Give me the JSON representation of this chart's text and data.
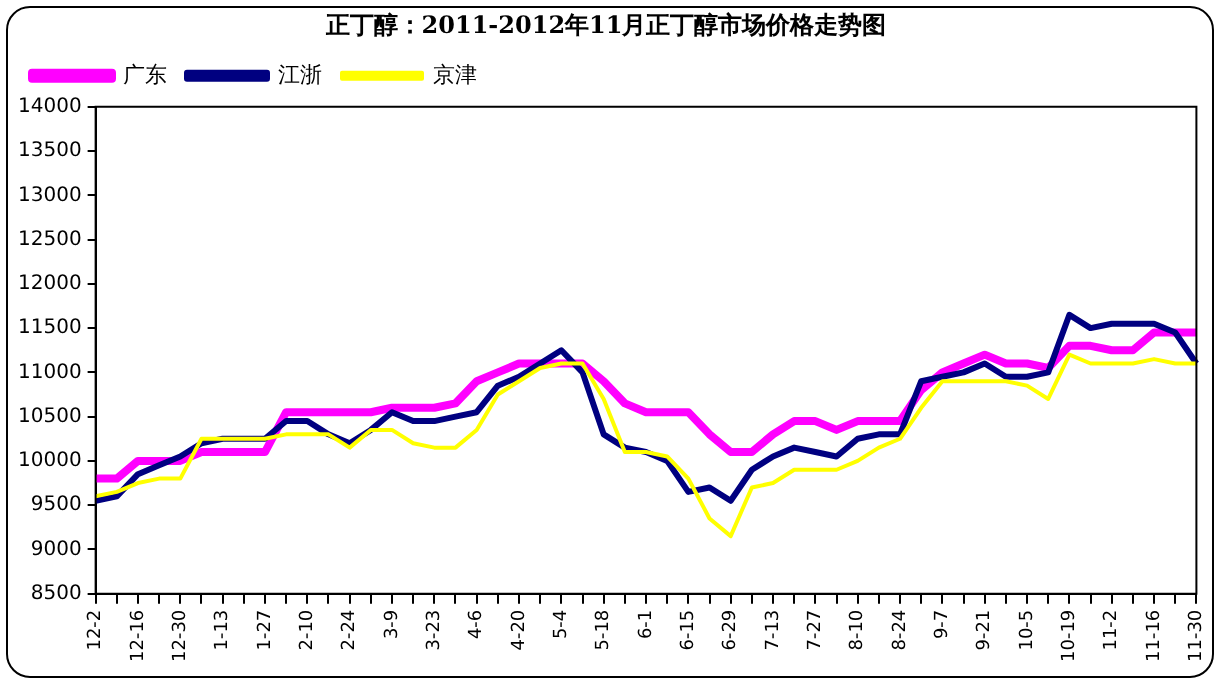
{
  "chart_data": {
    "type": "line",
    "title": "正丁醇：2011-2012年11月正丁醇市场价格走势图",
    "categories": [
      "12-2",
      null,
      "12-16",
      null,
      "12-30",
      null,
      "1-13",
      null,
      "1-27",
      null,
      "2-10",
      null,
      "2-24",
      null,
      "3-9",
      null,
      "3-23",
      null,
      "4-6",
      null,
      "4-20",
      null,
      "5-4",
      null,
      "5-18",
      null,
      "6-1",
      null,
      "6-15",
      null,
      "6-29",
      null,
      "7-13",
      null,
      "7-27",
      null,
      "8-10",
      null,
      "8-24",
      null,
      "9-7",
      null,
      "9-21",
      null,
      "10-5",
      null,
      "10-19",
      null,
      "11-2",
      null,
      "11-16",
      null,
      "11-30"
    ],
    "series": [
      {
        "name": "广东",
        "color": "#ff00ff",
        "values": [
          9800,
          9800,
          10000,
          10000,
          10000,
          10100,
          10100,
          10100,
          10100,
          10550,
          10550,
          10550,
          10550,
          10550,
          10600,
          10600,
          10600,
          10650,
          10900,
          11000,
          11100,
          11100,
          11100,
          11100,
          10900,
          10650,
          10550,
          10550,
          10550,
          10300,
          10100,
          10100,
          10300,
          10450,
          10450,
          10350,
          10450,
          10450,
          10450,
          10800,
          11000,
          11100,
          11200,
          11100,
          11100,
          11050,
          11300,
          11300,
          11250,
          11250,
          11450,
          11450,
          11450
        ]
      },
      {
        "name": "江浙",
        "color": "#000080",
        "values": [
          9550,
          9600,
          9850,
          9950,
          10050,
          10200,
          10250,
          10250,
          10250,
          10450,
          10450,
          10300,
          10200,
          10350,
          10550,
          10450,
          10450,
          10500,
          10550,
          10850,
          10950,
          11100,
          11250,
          11000,
          10300,
          10150,
          10100,
          10000,
          9650,
          9700,
          9550,
          9900,
          10050,
          10150,
          10100,
          10050,
          10250,
          10300,
          10300,
          10900,
          10950,
          11000,
          11100,
          10950,
          10950,
          11000,
          11650,
          11500,
          11550,
          11550,
          11550,
          11450,
          11100
        ]
      },
      {
        "name": "京津",
        "color": "#ffff00",
        "values": [
          9600,
          9650,
          9750,
          9800,
          9800,
          10250,
          10250,
          10250,
          10250,
          10300,
          10300,
          10300,
          10150,
          10350,
          10350,
          10200,
          10150,
          10150,
          10350,
          10750,
          10900,
          11050,
          11100,
          11100,
          10700,
          10100,
          10100,
          10050,
          9800,
          9350,
          9150,
          9700,
          9750,
          9900,
          9900,
          9900,
          10000,
          10150,
          10250,
          10600,
          10900,
          10900,
          10900,
          10900,
          10850,
          10700,
          11200,
          11100,
          11100,
          11100,
          11150,
          11100,
          11100
        ]
      }
    ],
    "ylim": [
      8500,
      14000
    ],
    "yticks": [
      8500,
      9000,
      9500,
      10000,
      10500,
      11000,
      11500,
      12000,
      12500,
      13000,
      13500,
      14000
    ],
    "grid": false,
    "legend": "top left",
    "marker": "none",
    "line_style": "solid"
  }
}
